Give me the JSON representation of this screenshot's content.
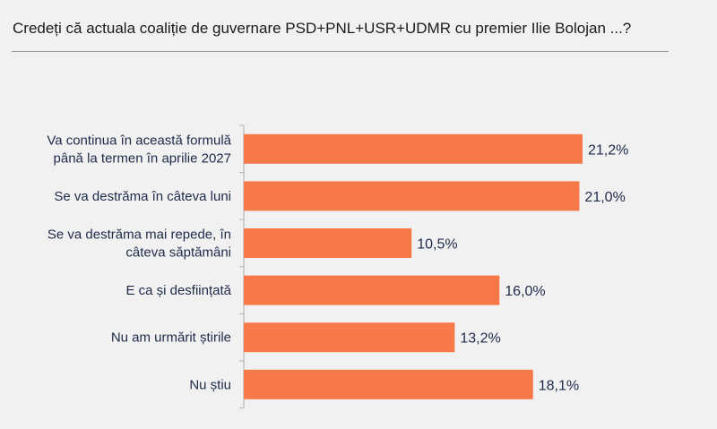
{
  "title": "Credeți că actuala coaliție de guvernare PSD+PNL+USR+UDMR cu premier Ilie Bolojan ...?",
  "chart_data": {
    "type": "bar",
    "orientation": "horizontal",
    "title": "Credeți că actuala coaliție de guvernare PSD+PNL+USR+UDMR cu premier Ilie Bolojan ...?",
    "categories": [
      [
        "Va continua în această formulă",
        "până la termen în aprilie 2027"
      ],
      [
        "Se va destrăma în câteva luni"
      ],
      [
        "Se va destrăma mai repede, în",
        "câteva săptămâni"
      ],
      [
        "E ca și desființată"
      ],
      [
        "Nu am urmărit știrile"
      ],
      [
        "Nu știu"
      ]
    ],
    "values": [
      21.2,
      21.0,
      10.5,
      16.0,
      13.2,
      18.1
    ],
    "labels": [
      "21,2%",
      "21,0%",
      "10,5%",
      "16,0%",
      "13,2%",
      "18,1%"
    ],
    "bar_color": "#f7794a",
    "xlim": [
      0,
      25
    ],
    "grid": false
  }
}
